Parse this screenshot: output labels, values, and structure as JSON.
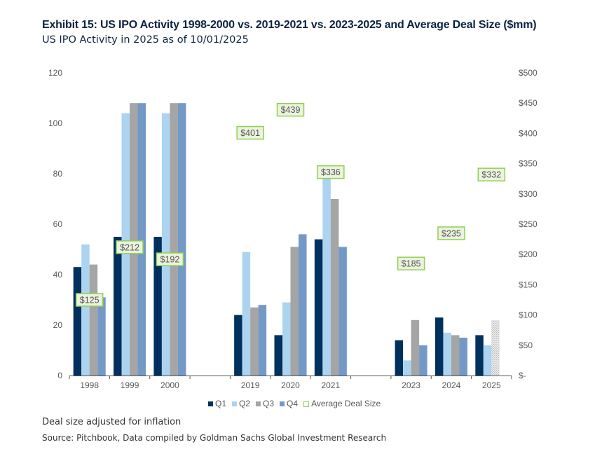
{
  "title": "Exhibit 15: US IPO Activity 1998-2000 vs. 2019-2021 vs. 2023-2025 and Average Deal Size ($mm)",
  "subtitle": "US IPO Activity in 2025 as of 10/01/2025",
  "notes": [
    "Deal size adjusted for inflation",
    "Source: Pitchbook, Data compiled by Goldman Sachs Global Investment Research"
  ],
  "chart_data": {
    "type": "bar",
    "categories": [
      "1998",
      "1999",
      "2000",
      "",
      "2019",
      "2020",
      "2021",
      "",
      "2023",
      "2024",
      "2025"
    ],
    "series": [
      {
        "name": "Q1",
        "color": "#00305e",
        "values": [
          43,
          55,
          55,
          null,
          24,
          16,
          54,
          null,
          14,
          23,
          16
        ]
      },
      {
        "name": "Q2",
        "color": "#acd3f0",
        "values": [
          52,
          104,
          104,
          null,
          49,
          29,
          79,
          null,
          6,
          17,
          12
        ]
      },
      {
        "name": "Q3",
        "color": "#a5a5a5",
        "values": [
          44,
          108,
          108,
          null,
          27,
          51,
          70,
          null,
          22,
          16,
          22
        ]
      },
      {
        "name": "Q4",
        "color": "#7399c6",
        "values": [
          31,
          108,
          108,
          null,
          28,
          56,
          51,
          null,
          12,
          15,
          null
        ]
      }
    ],
    "estimated_bar": {
      "category": "2025",
      "series": "Q3",
      "style": "hatched"
    },
    "average_deal_size": {
      "name": "Average Deal Size",
      "values": [
        125,
        212,
        192,
        null,
        401,
        439,
        336,
        null,
        185,
        235,
        332
      ],
      "labels": [
        "$125",
        "$212",
        "$192",
        "",
        "$401",
        "$439",
        "$336",
        "",
        "$185",
        "$235",
        "$332"
      ],
      "box_color": "#92d050"
    },
    "y_left": {
      "range": [
        0,
        120
      ],
      "ticks": [
        "0",
        "20",
        "40",
        "60",
        "80",
        "100",
        "120"
      ]
    },
    "y_right": {
      "range": [
        0,
        500
      ],
      "ticks": [
        "$-",
        "$50",
        "$100",
        "$150",
        "$200",
        "$250",
        "$300",
        "$350",
        "$400",
        "$450",
        "$500"
      ]
    },
    "grid": false,
    "legend": "bottom"
  }
}
